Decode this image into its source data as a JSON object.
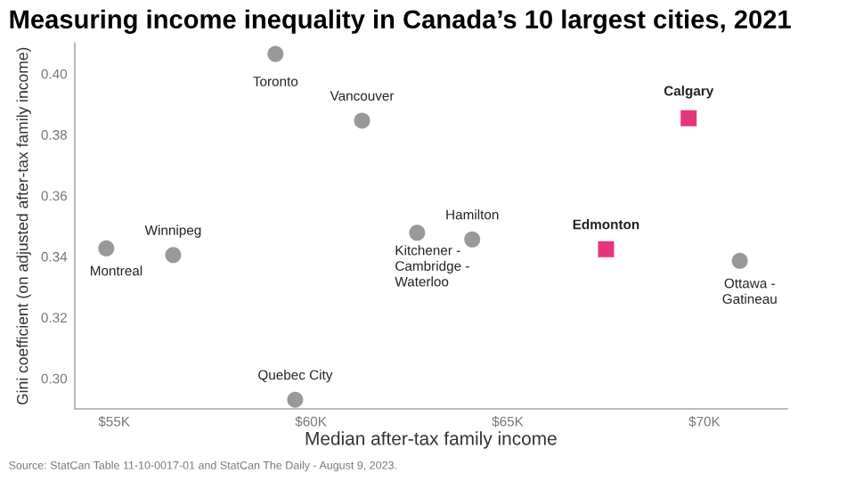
{
  "chart_data": {
    "type": "scatter",
    "title": "Measuring income inequality in Canada’s 10 largest cities, 2021",
    "xlabel": "Median after-tax family income",
    "ylabel": "Gini coefficient (on adjusted after-tax family income)",
    "series": [
      {
        "color": "#999999",
        "marker": "circle",
        "x": [
          59.1,
          61.3,
          64.1,
          62.7,
          54.8,
          56.5,
          70.9,
          59.6
        ],
        "values": [
          0.4065,
          0.3846,
          0.3456,
          0.3478,
          0.3427,
          0.3405,
          0.3386,
          0.293
        ]
      },
      {
        "color": "#e8357a",
        "marker": "square",
        "x": [
          69.6,
          67.5
        ],
        "values": [
          0.3854,
          0.3424
        ]
      }
    ],
    "xlim": [
      54.0,
      72.1
    ],
    "ylim": [
      0.29,
      0.41
    ],
    "xticks": [
      {
        "value": 55,
        "label": "$55K"
      },
      {
        "value": 60,
        "label": "$60K"
      },
      {
        "value": 65,
        "label": "$65K"
      },
      {
        "value": 70,
        "label": "$70K"
      }
    ],
    "yticks": [
      {
        "value": 0.3,
        "label": "0.30"
      },
      {
        "value": 0.32,
        "label": "0.32"
      },
      {
        "value": 0.34,
        "label": "0.34"
      },
      {
        "value": 0.36,
        "label": "0.36"
      },
      {
        "value": 0.38,
        "label": "0.38"
      },
      {
        "value": 0.4,
        "label": "0.40"
      }
    ],
    "grid": false,
    "legend": false,
    "annotations": [
      {
        "text": "Toronto",
        "x": 59.1,
        "y": 0.4065
      },
      {
        "text": "Vancouver",
        "x": 61.3,
        "y": 0.3846
      },
      {
        "text": "Hamilton",
        "x": 64.1,
        "y": 0.3456
      },
      {
        "text": "Kitchener -\nCambridge -\nWaterloo",
        "x": 62.7,
        "y": 0.3478
      },
      {
        "text": "Montreal",
        "x": 54.8,
        "y": 0.3427
      },
      {
        "text": "Winnipeg",
        "x": 56.5,
        "y": 0.3405
      },
      {
        "text": "Ottawa -\nGatineau",
        "x": 70.9,
        "y": 0.3386
      },
      {
        "text": "Quebec City",
        "x": 59.6,
        "y": 0.293
      },
      {
        "text": "Calgary",
        "x": 69.6,
        "y": 0.3854
      },
      {
        "text": "Edmonton",
        "x": 67.5,
        "y": 0.3424
      },
      "Source: StatCan Table 11-10-0017-01 and StatCan The Daily - August 9, 2023."
    ]
  }
}
